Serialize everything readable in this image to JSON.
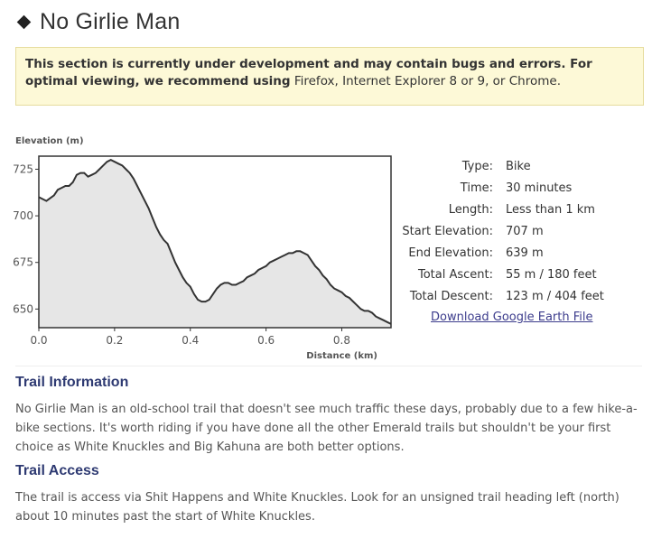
{
  "page": {
    "title": "No Girlie Man"
  },
  "notice": {
    "text_bold": "This section is currently under development and may contain bugs and errors. For optimal viewing, we recommend using",
    "text_browsers": "Firefox, Internet Explorer 8 or 9, or Chrome."
  },
  "chart_data": {
    "type": "area",
    "ylabel": "Elevation (m)",
    "xlabel": "Distance (km)",
    "xlim": [
      0,
      0.93
    ],
    "ylim": [
      640,
      732
    ],
    "x_ticks": [
      "0.0",
      "0.2",
      "0.4",
      "0.6",
      "0.8"
    ],
    "y_ticks": [
      "725",
      "700",
      "675",
      "650"
    ],
    "series": [
      {
        "x": [
          0.0,
          0.02,
          0.04,
          0.05,
          0.06,
          0.07,
          0.08,
          0.09,
          0.1,
          0.11,
          0.12,
          0.13,
          0.14,
          0.15,
          0.16,
          0.17,
          0.18,
          0.19,
          0.2,
          0.21,
          0.22,
          0.23,
          0.24,
          0.25,
          0.26,
          0.27,
          0.28,
          0.29,
          0.3,
          0.31,
          0.32,
          0.33,
          0.34,
          0.35,
          0.36,
          0.37,
          0.38,
          0.39,
          0.4,
          0.41,
          0.42,
          0.43,
          0.44,
          0.45,
          0.46,
          0.47,
          0.48,
          0.49,
          0.5,
          0.51,
          0.52,
          0.53,
          0.54,
          0.55,
          0.56,
          0.57,
          0.58,
          0.59,
          0.6,
          0.61,
          0.62,
          0.63,
          0.64,
          0.65,
          0.66,
          0.67,
          0.68,
          0.69,
          0.7,
          0.71,
          0.72,
          0.73,
          0.74,
          0.75,
          0.76,
          0.77,
          0.78,
          0.79,
          0.8,
          0.81,
          0.82,
          0.83,
          0.84,
          0.85,
          0.86,
          0.87,
          0.88,
          0.89,
          0.9,
          0.91,
          0.92,
          0.93
        ],
        "values": [
          710,
          708,
          711,
          714,
          715,
          716,
          716,
          718,
          722,
          723,
          723,
          721,
          722,
          723,
          725,
          727,
          729,
          730,
          729,
          728,
          727,
          725,
          723,
          720,
          716,
          712,
          708,
          704,
          699,
          694,
          690,
          687,
          685,
          680,
          675,
          671,
          667,
          664,
          662,
          658,
          655,
          654,
          654,
          655,
          658,
          661,
          663,
          664,
          664,
          663,
          663,
          664,
          665,
          667,
          668,
          669,
          671,
          672,
          673,
          675,
          676,
          677,
          678,
          679,
          680,
          680,
          681,
          681,
          680,
          679,
          676,
          673,
          671,
          668,
          666,
          663,
          661,
          660,
          659,
          657,
          656,
          654,
          652,
          650,
          649,
          649,
          648,
          646,
          645,
          644,
          643,
          642
        ]
      }
    ],
    "grid": false,
    "fill_color": "#e6e6e6",
    "line_color": "#333333"
  },
  "stats": [
    {
      "key": "Type:",
      "value": "Bike"
    },
    {
      "key": "Time:",
      "value": "30 minutes"
    },
    {
      "key": "Length:",
      "value": "Less than 1 km"
    },
    {
      "key": "Start Elevation:",
      "value": "707 m"
    },
    {
      "key": "End Elevation:",
      "value": "639 m"
    },
    {
      "key": "Total Ascent:",
      "value": "55 m / 180 feet"
    },
    {
      "key": "Total Descent:",
      "value": "123 m / 404 feet"
    }
  ],
  "download_label": "Download Google Earth File",
  "sections": {
    "info_title": "Trail Information",
    "info_text": "No Girlie Man is an old-school trail that doesn't see much traffic these days, probably due to a few hike-a-bike sections. It's worth riding if you have done all the other Emerald trails but shouldn't be your first choice as White Knuckles and Big Kahuna are both better options.",
    "access_title": "Trail Access",
    "access_text": "The trail is access via Shit Happens and White Knuckles. Look for an unsigned trail heading left (north) about 10 minutes past the start of White Knuckles."
  }
}
